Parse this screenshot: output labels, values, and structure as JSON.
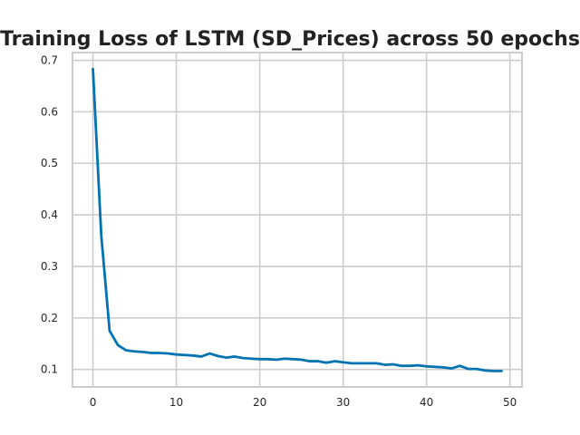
{
  "chart_data": {
    "type": "line",
    "title": "Training Loss of LSTM (SD_Prices) across 50 epochs",
    "xlabel": "",
    "ylabel": "",
    "xlim": [
      -2.45,
      51.45
    ],
    "ylim": [
      0.066,
      0.715
    ],
    "xticks": [
      0,
      10,
      20,
      30,
      40,
      50
    ],
    "yticks": [
      0.1,
      0.2,
      0.3,
      0.4,
      0.5,
      0.6,
      0.7
    ],
    "grid": true,
    "legend": "none",
    "colors": {
      "line": "#0173b2",
      "grid": "#cccccc",
      "background": "#ffffff"
    },
    "series": [
      {
        "x": [
          0,
          1,
          2,
          3,
          4,
          5,
          6,
          7,
          8,
          9,
          10,
          11,
          12,
          13,
          14,
          15,
          16,
          17,
          18,
          19,
          20,
          21,
          22,
          23,
          24,
          25,
          26,
          27,
          28,
          29,
          30,
          31,
          32,
          33,
          34,
          35,
          36,
          37,
          38,
          39,
          40,
          41,
          42,
          43,
          44,
          45,
          46,
          47,
          48,
          49
        ],
        "values": [
          0.683,
          0.36,
          0.175,
          0.147,
          0.137,
          0.135,
          0.134,
          0.132,
          0.132,
          0.131,
          0.129,
          0.128,
          0.127,
          0.125,
          0.131,
          0.126,
          0.123,
          0.125,
          0.122,
          0.121,
          0.12,
          0.12,
          0.119,
          0.121,
          0.12,
          0.119,
          0.116,
          0.116,
          0.113,
          0.116,
          0.114,
          0.112,
          0.112,
          0.112,
          0.112,
          0.109,
          0.11,
          0.107,
          0.107,
          0.108,
          0.106,
          0.105,
          0.104,
          0.102,
          0.107,
          0.101,
          0.101,
          0.098,
          0.097,
          0.097
        ]
      }
    ]
  }
}
